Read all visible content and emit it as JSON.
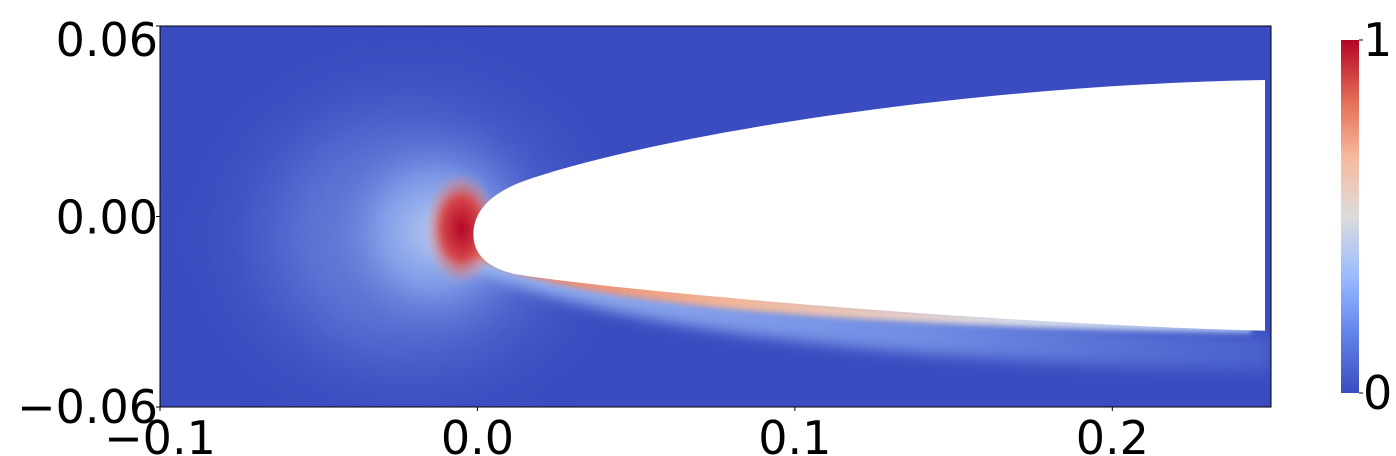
{
  "chart_data": {
    "type": "heatmap",
    "title": "",
    "xlabel": "",
    "ylabel": "",
    "xlim": [
      -0.1,
      0.25
    ],
    "ylim": [
      -0.06,
      0.06
    ],
    "x_ticks": [
      {
        "value": -0.1,
        "label": "−0.1"
      },
      {
        "value": 0.0,
        "label": "0.0"
      },
      {
        "value": 0.1,
        "label": "0.1"
      },
      {
        "value": 0.2,
        "label": "0.2"
      }
    ],
    "y_ticks": [
      {
        "value": -0.06,
        "label": "−0.06"
      },
      {
        "value": 0.0,
        "label": "0.00"
      },
      {
        "value": 0.06,
        "label": "0.06"
      }
    ],
    "colorbar": {
      "min": 0,
      "max": 1,
      "ticks": [
        {
          "value": 0,
          "label": "0"
        },
        {
          "value": 1,
          "label": "1"
        }
      ],
      "colormap": "coolwarm",
      "colors": [
        "#3b4cc0",
        "#7b9ff9",
        "#c0d4f5",
        "#dddcdc",
        "#f2cbb7",
        "#ee8468",
        "#b40426"
      ]
    },
    "obstacle": {
      "description_value": "white body (no field) with rounded leading edge",
      "nose_x": 0.0,
      "nose_y": 0.0,
      "upper_trailing_y": 0.043,
      "lower_trailing_y": -0.036,
      "trailing_x": 0.25
    },
    "field_peak": {
      "x": -0.005,
      "y": 0.0,
      "value": 1.0
    }
  }
}
